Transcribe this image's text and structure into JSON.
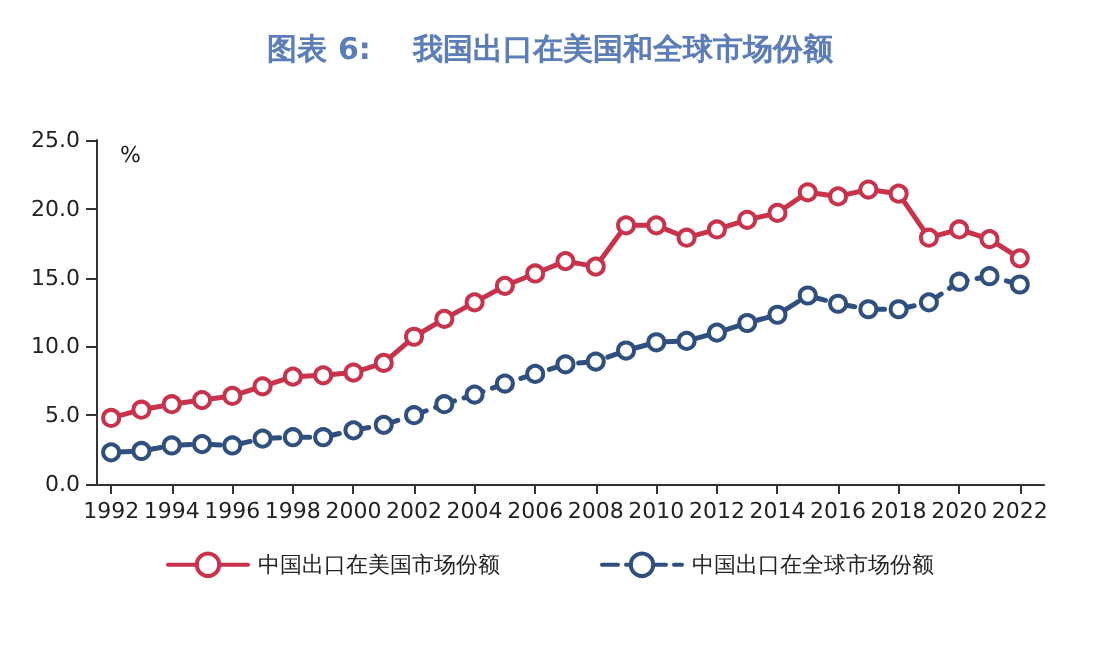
{
  "chart_data": {
    "type": "line",
    "title": "图表 6:    我国出口在美国和全球市场份额",
    "ylabel": "%",
    "x": [
      1992,
      1993,
      1994,
      1995,
      1996,
      1997,
      1998,
      1999,
      2000,
      2001,
      2002,
      2003,
      2004,
      2005,
      2006,
      2007,
      2008,
      2009,
      2010,
      2011,
      2012,
      2013,
      2014,
      2015,
      2016,
      2017,
      2018,
      2019,
      2020,
      2021,
      2022
    ],
    "series": [
      {
        "name": "中国出口在美国市场份额",
        "color": "#c8324a",
        "line_style": "solid",
        "values": [
          4.8,
          5.4,
          5.8,
          6.1,
          6.4,
          7.1,
          7.8,
          7.9,
          8.1,
          8.8,
          10.7,
          12.0,
          13.2,
          14.4,
          15.3,
          16.2,
          15.8,
          18.8,
          18.8,
          17.9,
          18.5,
          19.2,
          19.7,
          21.2,
          20.9,
          21.4,
          21.1,
          17.9,
          18.5,
          17.8,
          16.4
        ]
      },
      {
        "name": "中国出口在全球市场份额",
        "color": "#2f4f7f",
        "line_style": "dashed",
        "values": [
          2.3,
          2.4,
          2.8,
          2.9,
          2.8,
          3.3,
          3.4,
          3.4,
          3.9,
          4.3,
          5.0,
          5.8,
          6.5,
          7.3,
          8.0,
          8.7,
          8.9,
          9.7,
          10.3,
          10.4,
          11.0,
          11.7,
          12.3,
          13.7,
          13.1,
          12.7,
          12.7,
          13.2,
          14.7,
          15.1,
          14.5
        ]
      }
    ],
    "xlim": [
      1991.5,
      2022.8
    ],
    "xticks": [
      1992,
      1994,
      1996,
      1998,
      2000,
      2002,
      2004,
      2006,
      2008,
      2010,
      2012,
      2014,
      2016,
      2018,
      2020,
      2022
    ],
    "ylim": [
      0,
      25
    ],
    "yticks": [
      {
        "value": 0,
        "label": "0.0"
      },
      {
        "value": 5,
        "label": "5.0"
      },
      {
        "value": 10,
        "label": "10.0"
      },
      {
        "value": 15,
        "label": "15.0"
      },
      {
        "value": 20,
        "label": "20.0"
      },
      {
        "value": 25,
        "label": "25.0"
      }
    ],
    "grid": false,
    "legend": "bottom",
    "marker": "circle"
  }
}
